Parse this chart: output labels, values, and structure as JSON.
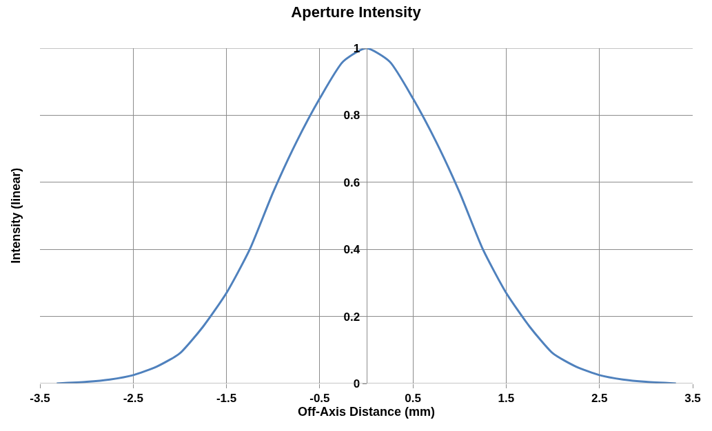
{
  "chart_data": {
    "type": "line",
    "title": "Aperture Intensity",
    "xlabel": "Off-Axis Distance (mm)",
    "ylabel": "Intensity (linear)",
    "x": [
      -3.32,
      -3.0,
      -2.75,
      -2.5,
      -2.25,
      -2.0,
      -1.75,
      -1.5,
      -1.25,
      -1.0,
      -0.75,
      -0.5,
      -0.25,
      0.0,
      0.25,
      0.5,
      0.75,
      1.0,
      1.25,
      1.5,
      1.75,
      2.0,
      2.25,
      2.5,
      2.75,
      3.0,
      3.32
    ],
    "series": [
      {
        "color": "#4f81bd",
        "values": [
          0.0,
          0.005,
          0.012,
          0.025,
          0.05,
          0.09,
          0.17,
          0.27,
          0.4,
          0.57,
          0.72,
          0.85,
          0.96,
          1.0,
          0.96,
          0.85,
          0.72,
          0.57,
          0.4,
          0.27,
          0.17,
          0.09,
          0.05,
          0.025,
          0.012,
          0.005,
          0.0
        ]
      }
    ],
    "xlim": [
      -3.5,
      3.5
    ],
    "xticks": [
      -3.5,
      -2.5,
      -1.5,
      -0.5,
      0.5,
      1.5,
      2.5,
      3.5
    ],
    "ylim": [
      0,
      1
    ],
    "yticks": [
      0,
      0.2,
      0.4,
      0.6,
      0.8,
      1
    ],
    "grid": true,
    "marker": "none",
    "line_style": "solid"
  }
}
